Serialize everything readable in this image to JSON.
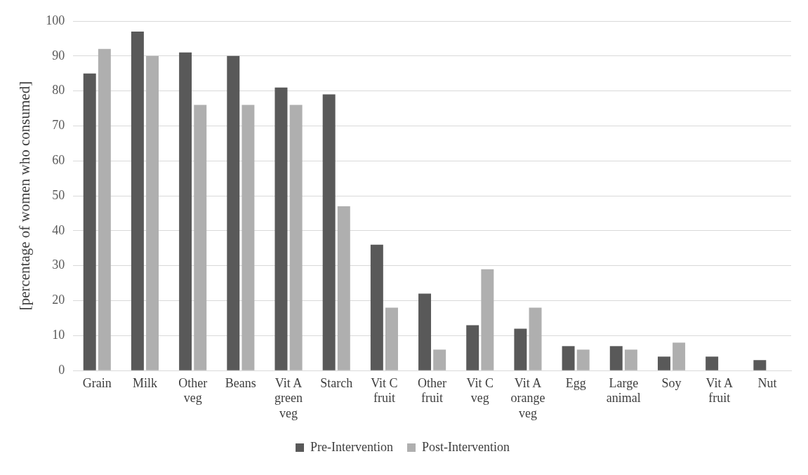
{
  "chart_data": {
    "type": "bar",
    "ylabel": "[percentage of women who consumed]",
    "categories": [
      "Grain",
      "Milk",
      "Other veg",
      "Beans",
      "Vit A green veg",
      "Starch",
      "Vit C fruit",
      "Other fruit",
      "Vit C veg",
      "Vit A orange veg",
      "Egg",
      "Large animal",
      "Soy",
      "Vit A fruit",
      "Nut"
    ],
    "series": [
      {
        "name": "Pre-Intervention",
        "color": "#595959",
        "values": [
          85,
          97,
          91,
          90,
          81,
          79,
          36,
          22,
          13,
          12,
          7,
          7,
          4,
          4,
          3
        ]
      },
      {
        "name": "Post-Intervention",
        "color": "#afafaf",
        "values": [
          92,
          90,
          76,
          76,
          76,
          47,
          18,
          6,
          29,
          18,
          6,
          6,
          8,
          0,
          0
        ]
      }
    ],
    "ylim": [
      0,
      100
    ],
    "yticks": [
      0,
      10,
      20,
      30,
      40,
      50,
      60,
      70,
      80,
      90,
      100
    ],
    "grid": "y",
    "legend": "bottom"
  }
}
